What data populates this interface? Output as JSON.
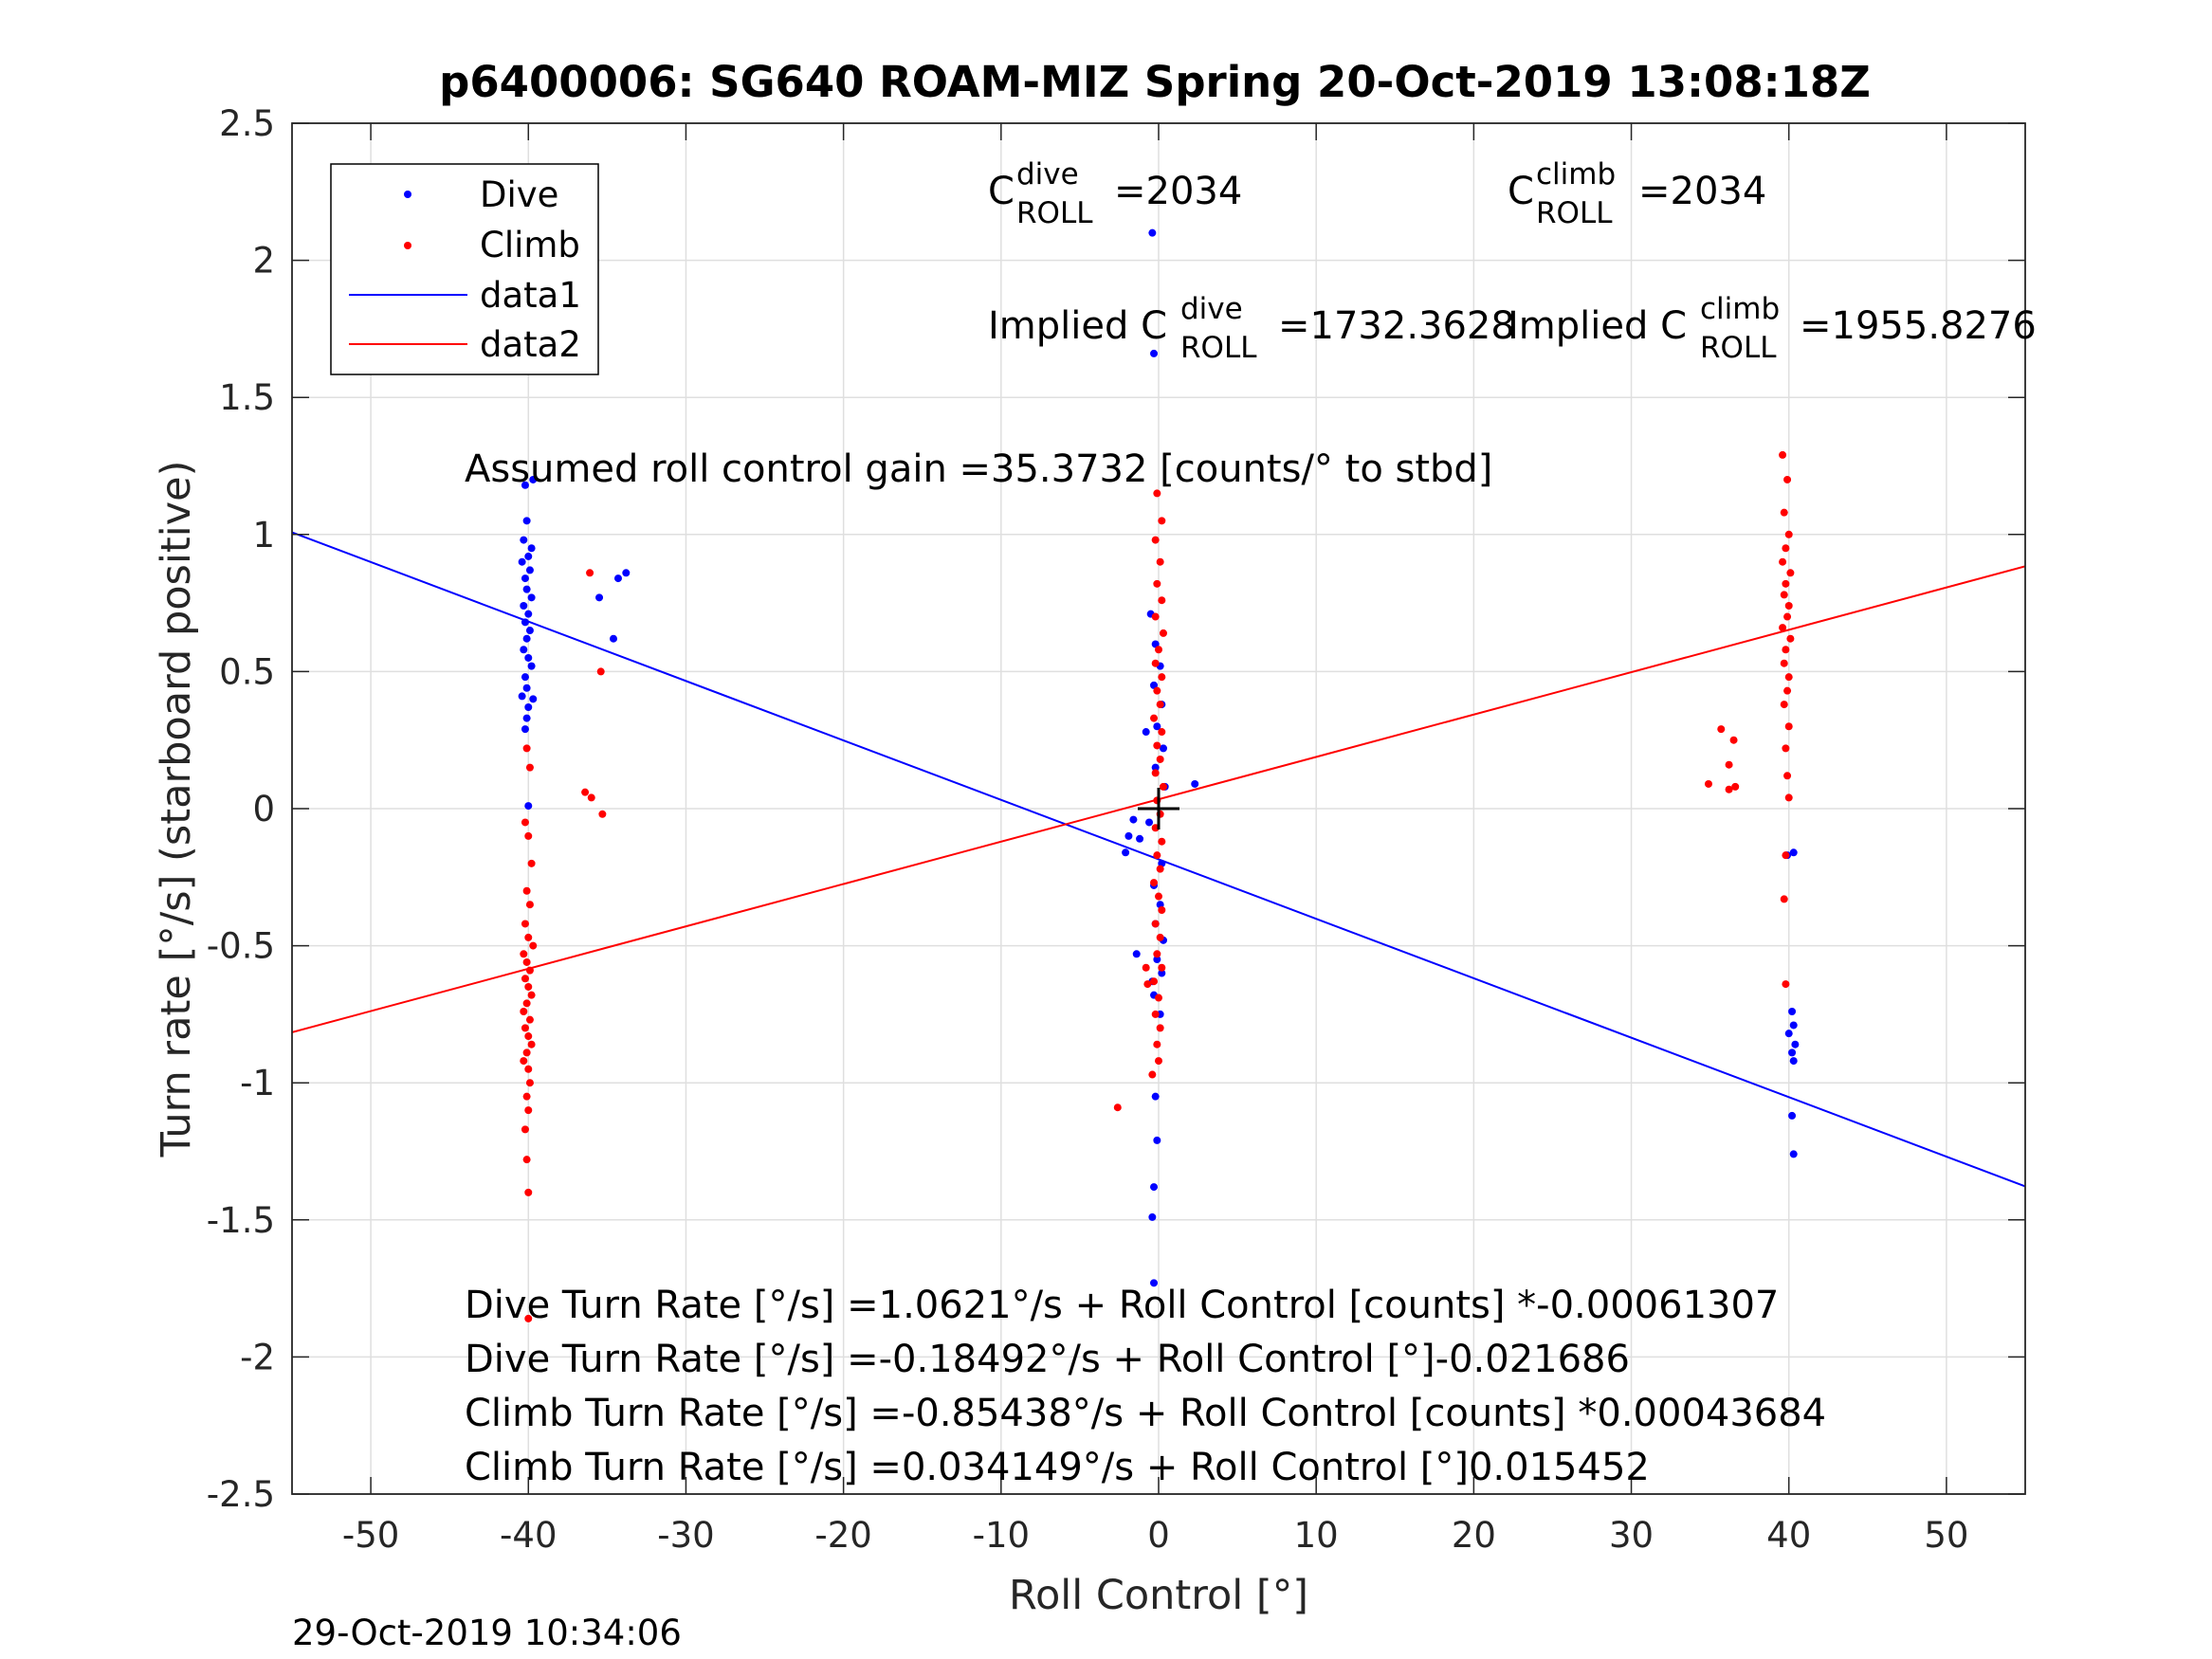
{
  "chart_data": {
    "type": "scatter",
    "title": "p6400006: SG640 ROAM-MIZ Spring 20-Oct-2019 13:08:18Z",
    "xlabel": "Roll Control [°]",
    "ylabel": "Turn rate [°/s] (starboard positive)",
    "xlim": [
      -55,
      55
    ],
    "ylim": [
      -2.5,
      2.5
    ],
    "xticks": [
      -50,
      -40,
      -30,
      -20,
      -10,
      0,
      10,
      20,
      30,
      40,
      50
    ],
    "yticks": [
      2.5,
      2,
      1.5,
      1,
      0.5,
      0,
      -0.5,
      -1,
      -1.5,
      -2,
      -2.5
    ],
    "xtick_labels": [
      "-50",
      "-40",
      "-30",
      "-20",
      "-10",
      "0",
      "10",
      "20",
      "30",
      "40",
      "50"
    ],
    "ytick_labels": [
      "2.5",
      "2",
      "1.5",
      "1",
      "0.5",
      "0",
      "-0.5",
      "-1",
      "-1.5",
      "-2",
      "-2.5"
    ],
    "grid": true,
    "legend_position": "top-left",
    "legend": [
      "Dive",
      "Climb",
      "data1",
      "data2"
    ],
    "colors": {
      "dive": "#0000ff",
      "climb": "#ff0000",
      "marker": "#000000"
    },
    "series": [
      {
        "name": "Dive",
        "kind": "points",
        "color": "#0000ff",
        "points": [
          [
            -40.2,
            1.18
          ],
          [
            -39.7,
            1.2
          ],
          [
            -40.1,
            1.05
          ],
          [
            -40.3,
            0.98
          ],
          [
            -39.8,
            0.95
          ],
          [
            -40.0,
            0.92
          ],
          [
            -40.4,
            0.9
          ],
          [
            -39.9,
            0.87
          ],
          [
            -40.2,
            0.84
          ],
          [
            -40.1,
            0.8
          ],
          [
            -39.8,
            0.77
          ],
          [
            -40.3,
            0.74
          ],
          [
            -40.0,
            0.71
          ],
          [
            -40.2,
            0.68
          ],
          [
            -39.9,
            0.65
          ],
          [
            -40.1,
            0.62
          ],
          [
            -40.3,
            0.58
          ],
          [
            -40.0,
            0.55
          ],
          [
            -39.8,
            0.52
          ],
          [
            -40.2,
            0.48
          ],
          [
            -40.1,
            0.44
          ],
          [
            -40.4,
            0.41
          ],
          [
            -39.7,
            0.4
          ],
          [
            -40.0,
            0.37
          ],
          [
            -40.1,
            0.33
          ],
          [
            -40.2,
            0.29
          ],
          [
            -40.0,
            0.01
          ],
          [
            -35.5,
            0.77
          ],
          [
            -34.3,
            0.84
          ],
          [
            -33.8,
            0.86
          ],
          [
            -34.6,
            0.62
          ],
          [
            -0.4,
            2.1
          ],
          [
            -0.3,
            1.66
          ],
          [
            -0.5,
            0.71
          ],
          [
            -0.2,
            0.6
          ],
          [
            0.1,
            0.52
          ],
          [
            -0.3,
            0.45
          ],
          [
            0.2,
            0.38
          ],
          [
            -0.1,
            0.3
          ],
          [
            -0.8,
            0.28
          ],
          [
            0.3,
            0.22
          ],
          [
            -0.2,
            0.15
          ],
          [
            0.4,
            0.08
          ],
          [
            2.3,
            0.09
          ],
          [
            -1.6,
            -0.04
          ],
          [
            -1.9,
            -0.1
          ],
          [
            -1.2,
            -0.11
          ],
          [
            -2.1,
            -0.16
          ],
          [
            -0.6,
            -0.05
          ],
          [
            0.2,
            -0.2
          ],
          [
            -0.3,
            -0.28
          ],
          [
            0.1,
            -0.35
          ],
          [
            -0.2,
            -0.42
          ],
          [
            0.3,
            -0.48
          ],
          [
            -0.1,
            -0.55
          ],
          [
            0.2,
            -0.6
          ],
          [
            -0.4,
            -0.63
          ],
          [
            -1.4,
            -0.53
          ],
          [
            -0.3,
            -0.68
          ],
          [
            0.1,
            -0.75
          ],
          [
            -0.2,
            -1.05
          ],
          [
            -0.1,
            -1.21
          ],
          [
            -0.3,
            -1.38
          ],
          [
            -0.4,
            -1.49
          ],
          [
            -0.3,
            -1.73
          ],
          [
            39.9,
            -0.17
          ],
          [
            40.3,
            -0.16
          ],
          [
            40.2,
            -0.74
          ],
          [
            40.3,
            -0.79
          ],
          [
            40.0,
            -0.82
          ],
          [
            40.4,
            -0.86
          ],
          [
            40.2,
            -0.89
          ],
          [
            40.3,
            -0.92
          ],
          [
            40.2,
            -1.12
          ],
          [
            40.3,
            -1.26
          ]
        ]
      },
      {
        "name": "Climb",
        "kind": "points",
        "color": "#ff0000",
        "points": [
          [
            -40.1,
            0.22
          ],
          [
            -39.9,
            0.15
          ],
          [
            -40.2,
            -0.05
          ],
          [
            -40.0,
            -0.1
          ],
          [
            -39.8,
            -0.2
          ],
          [
            -40.1,
            -0.3
          ],
          [
            -39.9,
            -0.35
          ],
          [
            -40.2,
            -0.42
          ],
          [
            -40.0,
            -0.47
          ],
          [
            -39.7,
            -0.5
          ],
          [
            -40.3,
            -0.53
          ],
          [
            -40.1,
            -0.56
          ],
          [
            -39.9,
            -0.59
          ],
          [
            -40.2,
            -0.62
          ],
          [
            -40.0,
            -0.65
          ],
          [
            -39.8,
            -0.68
          ],
          [
            -40.1,
            -0.71
          ],
          [
            -40.3,
            -0.74
          ],
          [
            -39.9,
            -0.77
          ],
          [
            -40.2,
            -0.8
          ],
          [
            -40.0,
            -0.83
          ],
          [
            -39.8,
            -0.86
          ],
          [
            -40.1,
            -0.89
          ],
          [
            -40.3,
            -0.92
          ],
          [
            -40.0,
            -0.95
          ],
          [
            -39.9,
            -1.0
          ],
          [
            -40.1,
            -1.05
          ],
          [
            -40.0,
            -1.1
          ],
          [
            -40.2,
            -1.17
          ],
          [
            -40.1,
            -1.28
          ],
          [
            -40.0,
            -1.4
          ],
          [
            -40.0,
            -1.86
          ],
          [
            -36.1,
            0.86
          ],
          [
            -35.4,
            0.5
          ],
          [
            -36.4,
            0.06
          ],
          [
            -36.0,
            0.04
          ],
          [
            -35.3,
            -0.02
          ],
          [
            -0.1,
            1.15
          ],
          [
            0.2,
            1.05
          ],
          [
            -0.2,
            0.98
          ],
          [
            0.1,
            0.9
          ],
          [
            -0.1,
            0.82
          ],
          [
            0.2,
            0.76
          ],
          [
            -0.2,
            0.7
          ],
          [
            0.3,
            0.64
          ],
          [
            0.0,
            0.58
          ],
          [
            -0.2,
            0.53
          ],
          [
            0.2,
            0.48
          ],
          [
            -0.1,
            0.43
          ],
          [
            0.1,
            0.38
          ],
          [
            -0.3,
            0.33
          ],
          [
            0.2,
            0.28
          ],
          [
            -0.1,
            0.23
          ],
          [
            0.1,
            0.18
          ],
          [
            -0.2,
            0.13
          ],
          [
            0.3,
            0.08
          ],
          [
            -0.1,
            0.03
          ],
          [
            0.1,
            -0.02
          ],
          [
            -0.2,
            -0.07
          ],
          [
            0.2,
            -0.12
          ],
          [
            -0.1,
            -0.17
          ],
          [
            0.1,
            -0.22
          ],
          [
            -0.3,
            -0.27
          ],
          [
            0.0,
            -0.32
          ],
          [
            0.2,
            -0.37
          ],
          [
            -0.2,
            -0.42
          ],
          [
            0.1,
            -0.47
          ],
          [
            -0.1,
            -0.53
          ],
          [
            0.2,
            -0.58
          ],
          [
            -0.3,
            -0.63
          ],
          [
            0.0,
            -0.69
          ],
          [
            -0.2,
            -0.75
          ],
          [
            0.1,
            -0.8
          ],
          [
            -0.1,
            -0.86
          ],
          [
            0.0,
            -0.92
          ],
          [
            -0.4,
            -0.97
          ],
          [
            -0.7,
            -0.64
          ],
          [
            -0.8,
            -0.58
          ],
          [
            -2.6,
            -1.09
          ],
          [
            39.6,
            1.29
          ],
          [
            39.9,
            1.2
          ],
          [
            39.7,
            1.08
          ],
          [
            40.0,
            1.0
          ],
          [
            39.8,
            0.95
          ],
          [
            39.6,
            0.9
          ],
          [
            40.1,
            0.86
          ],
          [
            39.8,
            0.82
          ],
          [
            39.7,
            0.78
          ],
          [
            40.0,
            0.74
          ],
          [
            39.9,
            0.7
          ],
          [
            39.6,
            0.66
          ],
          [
            40.1,
            0.62
          ],
          [
            39.8,
            0.58
          ],
          [
            39.7,
            0.53
          ],
          [
            40.0,
            0.48
          ],
          [
            39.9,
            0.43
          ],
          [
            39.7,
            0.38
          ],
          [
            40.0,
            0.3
          ],
          [
            39.8,
            0.22
          ],
          [
            39.9,
            0.12
          ],
          [
            40.0,
            0.04
          ],
          [
            39.8,
            -0.17
          ],
          [
            39.7,
            -0.33
          ],
          [
            39.8,
            -0.64
          ],
          [
            35.7,
            0.29
          ],
          [
            36.5,
            0.25
          ],
          [
            36.2,
            0.16
          ],
          [
            34.9,
            0.09
          ],
          [
            36.6,
            0.08
          ],
          [
            36.2,
            0.07
          ]
        ]
      },
      {
        "name": "data1",
        "kind": "line",
        "color": "#0000ff",
        "intercept": -0.18492,
        "slope": -0.021686
      },
      {
        "name": "data2",
        "kind": "line",
        "color": "#ff0000",
        "intercept": 0.034149,
        "slope": 0.015452
      }
    ],
    "origin_marker": [
      0,
      0
    ],
    "annotations": {
      "c_roll_dive": {
        "symbol": "C",
        "sup": "dive",
        "sub": "ROLL",
        "value": "=2034"
      },
      "c_roll_climb": {
        "symbol": "C",
        "sup": "climb",
        "sub": "ROLL",
        "value": "=2034"
      },
      "implied_dive": {
        "prefix": "Implied C",
        "sup": "dive",
        "sub": "ROLL",
        "value": "=1732.3628"
      },
      "implied_climb": {
        "prefix": "Implied C",
        "sup": "climb",
        "sub": "ROLL",
        "value": "=1955.8276"
      },
      "gain": "Assumed roll control gain =35.3732 [counts/° to stbd]",
      "fits": [
        "Dive Turn Rate [°/s] =1.0621°/s + Roll Control [counts] *-0.00061307",
        "Dive Turn Rate [°/s] =-0.18492°/s + Roll Control [°]-0.021686",
        "Climb Turn Rate [°/s] =-0.85438°/s + Roll Control [counts] *0.00043684",
        "Climb Turn Rate [°/s] =0.034149°/s + Roll Control [°]0.015452"
      ]
    },
    "footer_timestamp": "29-Oct-2019 10:34:06"
  }
}
